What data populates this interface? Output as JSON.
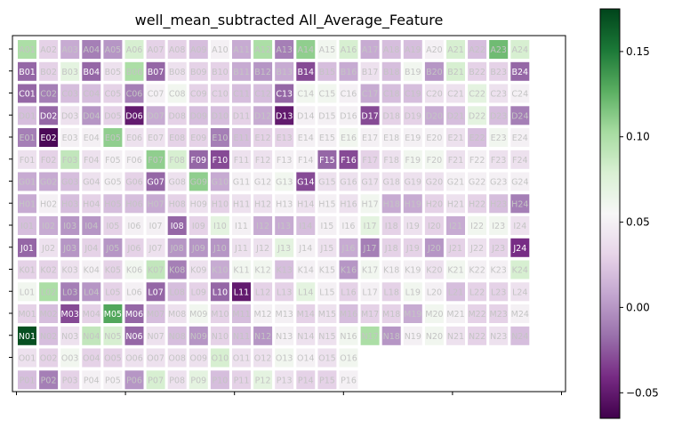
{
  "chart_data": {
    "type": "heatmap",
    "title": "well_mean_subtracted All_Average_Feature",
    "xlabel": "",
    "ylabel": "",
    "grid": false,
    "rows": [
      "A",
      "B",
      "C",
      "D",
      "E",
      "F",
      "G",
      "H",
      "I",
      "J",
      "K",
      "L",
      "M",
      "N",
      "O",
      "P"
    ],
    "columns": 24,
    "colormap": "PRGn",
    "colorbar": {
      "vmin": -0.065,
      "vmax": 0.175,
      "ticks": [
        -0.05,
        0.0,
        0.05,
        0.1,
        0.15
      ],
      "tick_labels": [
        "−0.05",
        "0.00",
        "0.05",
        "0.10",
        "0.15"
      ]
    },
    "values": [
      [
        0.1,
        0.03,
        0.01,
        -0.01,
        0.0,
        0.08,
        0.03,
        0.03,
        0.02,
        0.05,
        0.01,
        0.1,
        -0.01,
        0.11,
        0.06,
        0.08,
        0.01,
        0.02,
        0.02,
        0.05,
        0.08,
        0.02,
        0.12,
        0.08
      ],
      [
        -0.02,
        0.03,
        0.07,
        -0.02,
        0.04,
        0.1,
        -0.02,
        0.04,
        0.03,
        0.03,
        0.01,
        0.0,
        0.01,
        -0.03,
        0.02,
        0.01,
        0.04,
        0.02,
        0.06,
        0.0,
        0.08,
        0.03,
        0.03,
        -0.02
      ],
      [
        -0.02,
        -0.01,
        0.02,
        0.02,
        0.03,
        -0.01,
        0.05,
        0.06,
        0.03,
        0.03,
        0.02,
        0.02,
        -0.02,
        0.06,
        0.06,
        0.05,
        0.01,
        0.02,
        0.02,
        0.04,
        0.04,
        0.07,
        0.04,
        0.05
      ],
      [
        0.02,
        -0.02,
        0.04,
        0.0,
        0.03,
        -0.05,
        0.01,
        0.03,
        0.02,
        0.02,
        0.03,
        0.01,
        -0.05,
        0.05,
        0.05,
        0.05,
        -0.03,
        0.03,
        0.03,
        0.01,
        0.02,
        0.07,
        0.02,
        -0.01
      ],
      [
        -0.01,
        -0.06,
        0.05,
        0.05,
        0.11,
        0.04,
        0.04,
        0.03,
        0.03,
        -0.01,
        0.02,
        0.03,
        0.03,
        0.05,
        0.05,
        0.06,
        0.05,
        0.05,
        0.05,
        0.05,
        0.04,
        0.02,
        0.06,
        0.05
      ],
      [
        0.04,
        0.03,
        0.09,
        0.04,
        0.05,
        0.05,
        0.11,
        0.08,
        -0.02,
        -0.03,
        0.04,
        0.04,
        0.05,
        0.05,
        -0.02,
        -0.03,
        0.03,
        0.04,
        0.06,
        0.06,
        0.04,
        0.05,
        0.04,
        0.04
      ],
      [
        0.01,
        0.01,
        0.02,
        0.04,
        0.05,
        0.03,
        -0.02,
        0.04,
        0.11,
        0.01,
        0.05,
        0.05,
        0.06,
        -0.03,
        0.04,
        0.04,
        0.04,
        0.04,
        0.04,
        0.04,
        0.05,
        0.05,
        0.05,
        0.05
      ],
      [
        0.01,
        0.05,
        0.02,
        0.03,
        0.02,
        0.02,
        0.01,
        0.03,
        0.04,
        0.03,
        0.04,
        0.04,
        0.05,
        0.04,
        0.05,
        0.04,
        0.06,
        0.01,
        0.01,
        0.03,
        0.04,
        0.03,
        0.02,
        -0.01
      ],
      [
        0.02,
        0.01,
        0.0,
        0.0,
        0.03,
        0.05,
        0.05,
        -0.02,
        0.03,
        0.07,
        0.05,
        0.01,
        0.01,
        0.02,
        0.05,
        0.05,
        0.07,
        0.03,
        0.04,
        0.03,
        0.01,
        0.06,
        0.06,
        0.04
      ],
      [
        -0.02,
        0.04,
        0.0,
        0.03,
        0.0,
        0.03,
        0.04,
        0.0,
        0.0,
        0.0,
        0.04,
        0.04,
        0.07,
        0.05,
        0.04,
        0.01,
        -0.01,
        0.03,
        0.03,
        0.0,
        0.03,
        0.04,
        0.03,
        -0.04
      ],
      [
        0.03,
        0.03,
        0.04,
        0.05,
        0.03,
        0.06,
        0.09,
        -0.01,
        0.04,
        0.01,
        0.06,
        0.06,
        0.02,
        0.05,
        0.05,
        0.0,
        0.06,
        0.05,
        0.05,
        0.04,
        0.06,
        0.05,
        0.05,
        0.08
      ],
      [
        0.06,
        0.1,
        -0.01,
        0.0,
        0.03,
        0.05,
        -0.02,
        0.02,
        0.03,
        -0.02,
        -0.05,
        0.03,
        0.03,
        0.07,
        0.05,
        0.03,
        0.05,
        0.03,
        0.06,
        0.05,
        0.02,
        0.03,
        0.03,
        0.04
      ],
      [
        0.03,
        0.02,
        -0.03,
        0.03,
        0.13,
        -0.02,
        0.02,
        0.04,
        0.06,
        0.03,
        0.02,
        0.05,
        0.05,
        0.03,
        0.04,
        0.02,
        0.03,
        0.03,
        0.01,
        0.06,
        0.05,
        0.03,
        0.03,
        0.05
      ],
      [
        0.17,
        0.02,
        0.04,
        0.09,
        0.08,
        -0.02,
        0.04,
        0.02,
        0.0,
        0.03,
        0.02,
        0.0,
        0.05,
        0.04,
        0.04,
        0.06,
        0.1,
        0.0,
        0.05,
        0.06,
        0.04,
        0.03,
        0.04,
        0.02
      ],
      [
        0.04,
        0.03,
        0.06,
        0.03,
        0.03,
        0.04,
        0.04,
        0.04,
        0.04,
        0.08,
        0.04,
        0.04,
        0.06,
        0.05,
        0.04,
        0.06,
        null,
        null,
        null,
        null,
        null,
        null,
        null,
        null
      ],
      [
        0.02,
        -0.01,
        0.03,
        0.05,
        0.05,
        0.0,
        0.08,
        0.04,
        0.07,
        0.02,
        0.03,
        0.07,
        0.04,
        0.03,
        0.03,
        0.05,
        null,
        null,
        null,
        null,
        null,
        null,
        null,
        null
      ]
    ]
  }
}
